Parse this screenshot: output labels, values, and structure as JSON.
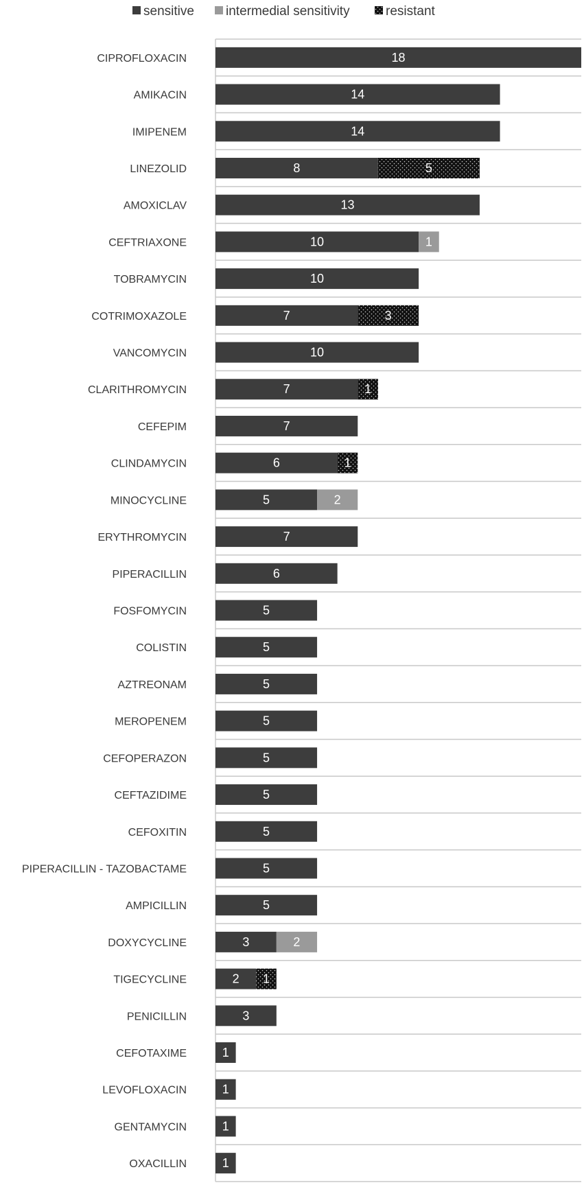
{
  "chart_data": {
    "type": "bar",
    "orientation": "horizontal",
    "stacked": true,
    "categories": [
      "CIPROFLOXACIN",
      "AMIKACIN",
      "IMIPENEM",
      "LINEZOLID",
      "AMOXICLAV",
      "CEFTRIAXONE",
      "TOBRAMYCIN",
      "COTRIMOXAZOLE",
      "VANCOMYCIN",
      "CLARITHROMYCIN",
      "CEFEPIM",
      "CLINDAMYCIN",
      "MINOCYCLINE",
      "ERYTHROMYCIN",
      "PIPERACILLIN",
      "FOSFOMYCIN",
      "COLISTIN",
      "AZTREONAM",
      "MEROPENEM",
      "CEFOPERAZON",
      "CEFTAZIDIME",
      "CEFOXITIN",
      "PIPERACILLIN - TAZOBACTAME",
      "AMPICILLIN",
      "DOXYCYCLINE",
      "TIGECYCLINE",
      "PENICILLIN",
      "CEFOTAXIME",
      "LEVOFLOXACIN",
      "GENTAMYCIN",
      "OXACILLIN"
    ],
    "series": [
      {
        "name": "sensitive",
        "color": "#3d3d3d",
        "pattern": "solid",
        "values": [
          18,
          14,
          14,
          8,
          13,
          10,
          10,
          7,
          10,
          7,
          7,
          6,
          5,
          7,
          6,
          5,
          5,
          5,
          5,
          5,
          5,
          5,
          5,
          5,
          3,
          2,
          3,
          1,
          1,
          1,
          1
        ]
      },
      {
        "name": "intermedial sensitivity",
        "color": "#9a9a9a",
        "pattern": "solid",
        "values": [
          0,
          0,
          0,
          0,
          0,
          1,
          0,
          0,
          0,
          0,
          0,
          0,
          2,
          0,
          0,
          0,
          0,
          0,
          0,
          0,
          0,
          0,
          0,
          0,
          2,
          0,
          0,
          0,
          0,
          0,
          0
        ]
      },
      {
        "name": "resistant",
        "color": "#111111",
        "pattern": "dotted",
        "values": [
          0,
          0,
          0,
          5,
          0,
          0,
          0,
          3,
          0,
          1,
          0,
          1,
          0,
          0,
          0,
          0,
          0,
          0,
          0,
          0,
          0,
          0,
          0,
          0,
          0,
          1,
          0,
          0,
          0,
          0,
          0
        ]
      }
    ],
    "xlim": [
      0,
      18
    ],
    "grid": "horizontal",
    "legend_position": "top",
    "data_labels": true
  }
}
